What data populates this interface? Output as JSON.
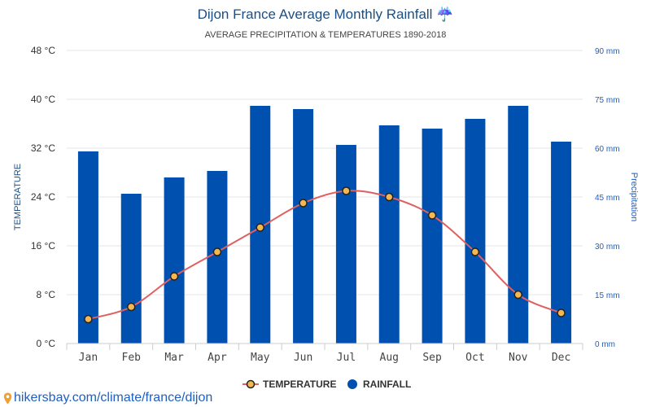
{
  "header": {
    "title": "Dijon France Average Monthly Rainfall ☔",
    "subtitle": "AVERAGE PRECIPITATION & TEMPERATURES 1890-2018"
  },
  "footer": {
    "link_text": "hikersbay.com/climate/france/dijon",
    "icon": "location-pin-icon"
  },
  "colors": {
    "bar": "#0050b0",
    "line": "#e06060",
    "marker_fill": "#f5b850",
    "marker_stroke": "#222222",
    "grid": "#e6e6e6",
    "title": "#1d4e82"
  },
  "chart_data": {
    "type": "bar+line",
    "title": "Dijon France Average Monthly Rainfall ☔",
    "subtitle": "AVERAGE PRECIPITATION & TEMPERATURES 1890-2018",
    "categories": [
      "Jan",
      "Feb",
      "Mar",
      "Apr",
      "May",
      "Jun",
      "Jul",
      "Aug",
      "Sep",
      "Oct",
      "Nov",
      "Dec"
    ],
    "series": [
      {
        "name": "RAINFALL",
        "type": "bar",
        "axis": "right",
        "unit": "mm",
        "values": [
          59,
          46,
          51,
          53,
          73,
          72,
          61,
          67,
          66,
          69,
          73,
          62
        ]
      },
      {
        "name": "TEMPERATURE",
        "type": "line",
        "axis": "left",
        "unit": "°C",
        "values": [
          4,
          6,
          11,
          15,
          19,
          23,
          25,
          24,
          21,
          15,
          8,
          5
        ]
      }
    ],
    "left_axis": {
      "label": "TEMPERATURE",
      "ylim": [
        0,
        48
      ],
      "ticks": [
        "0 °C",
        "8 °C",
        "16 °C",
        "24 °C",
        "32 °C",
        "40 °C",
        "48 °C"
      ],
      "tick_values": [
        0,
        8,
        16,
        24,
        32,
        40,
        48
      ]
    },
    "right_axis": {
      "label": "Precipitation",
      "ylim": [
        0,
        90
      ],
      "ticks": [
        "0 mm",
        "15 mm",
        "30 mm",
        "45 mm",
        "60 mm",
        "75 mm",
        "90 mm"
      ],
      "tick_values": [
        0,
        15,
        30,
        45,
        60,
        75,
        90
      ]
    },
    "grid": true,
    "legend": {
      "position": "bottom-center",
      "items": [
        "TEMPERATURE",
        "RAINFALL"
      ]
    }
  }
}
